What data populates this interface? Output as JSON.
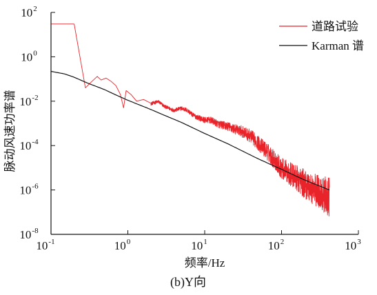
{
  "chart_data": {
    "type": "line",
    "caption": "(b)Y向",
    "xlabel": "频率/Hz",
    "ylabel": "脉动风速功率谱",
    "x_scale": "log",
    "y_scale": "log",
    "xlim": [
      0.1,
      1000
    ],
    "ylim": [
      1e-08,
      100
    ],
    "x_ticks": [
      {
        "base": "10",
        "exp": "-1",
        "value": 0.1
      },
      {
        "base": "10",
        "exp": "0",
        "value": 1
      },
      {
        "base": "10",
        "exp": "1",
        "value": 10
      },
      {
        "base": "10",
        "exp": "2",
        "value": 100
      },
      {
        "base": "10",
        "exp": "3",
        "value": 1000
      }
    ],
    "y_ticks": [
      {
        "base": "10",
        "exp": "-8",
        "value": 1e-08
      },
      {
        "base": "10",
        "exp": "-6",
        "value": 1e-06
      },
      {
        "base": "10",
        "exp": "-4",
        "value": 0.0001
      },
      {
        "base": "10",
        "exp": "-2",
        "value": 0.01
      },
      {
        "base": "10",
        "exp": "0",
        "value": 1
      },
      {
        "base": "10",
        "exp": "2",
        "value": 100
      }
    ],
    "grid": false,
    "legend_position": "top-right",
    "series": [
      {
        "name": "道路试验",
        "color": "#e8232a",
        "points": [
          [
            0.1,
            30
          ],
          [
            0.2,
            30
          ],
          [
            0.28,
            0.04
          ],
          [
            0.33,
            0.07
          ],
          [
            0.4,
            0.13
          ],
          [
            0.45,
            0.09
          ],
          [
            0.52,
            0.11
          ],
          [
            0.6,
            0.08
          ],
          [
            0.7,
            0.05
          ],
          [
            0.8,
            0.02
          ],
          [
            0.88,
            0.005
          ],
          [
            0.95,
            0.03
          ],
          [
            1.1,
            0.02
          ],
          [
            1.3,
            0.01
          ],
          [
            1.6,
            0.012
          ],
          [
            2.0,
            0.008
          ],
          [
            2.5,
            0.01
          ],
          [
            3.0,
            0.006
          ],
          [
            4.0,
            0.004
          ],
          [
            5.0,
            0.005
          ],
          [
            6.0,
            0.004
          ],
          [
            7.0,
            0.0025
          ],
          [
            8.0,
            0.002
          ],
          [
            10.0,
            0.0015
          ],
          [
            12.0,
            0.0015
          ],
          [
            15.0,
            0.001
          ],
          [
            20.0,
            0.0008
          ],
          [
            25.0,
            0.0006
          ],
          [
            30.0,
            0.0005
          ],
          [
            40.0,
            0.0003
          ],
          [
            50.0,
            0.00015
          ],
          [
            70.0,
            5e-05
          ],
          [
            100.0,
            1.2e-05
          ],
          [
            150.0,
            5e-06
          ],
          [
            200.0,
            2.5e-06
          ],
          [
            300.0,
            1.2e-06
          ],
          [
            420.0,
            7e-07
          ]
        ],
        "noise_band_from_hz": 2,
        "noise_decades_max": 1.6
      },
      {
        "name": "Karman 谱",
        "color": "#111111",
        "points": [
          [
            0.1,
            0.22
          ],
          [
            0.15,
            0.17
          ],
          [
            0.2,
            0.12
          ],
          [
            0.3,
            0.065
          ],
          [
            0.5,
            0.033
          ],
          [
            0.7,
            0.019
          ],
          [
            1.0,
            0.011
          ],
          [
            2.0,
            0.0042
          ],
          [
            3.0,
            0.0023
          ],
          [
            5.0,
            0.0011
          ],
          [
            10.0,
            0.00035
          ],
          [
            20.0,
            0.00012
          ],
          [
            30.0,
            6e-05
          ],
          [
            50.0,
            2.5e-05
          ],
          [
            100.0,
            8.5e-06
          ],
          [
            200.0,
            2.8e-06
          ],
          [
            300.0,
            1.6e-06
          ],
          [
            420.0,
            1e-06
          ]
        ]
      }
    ]
  }
}
